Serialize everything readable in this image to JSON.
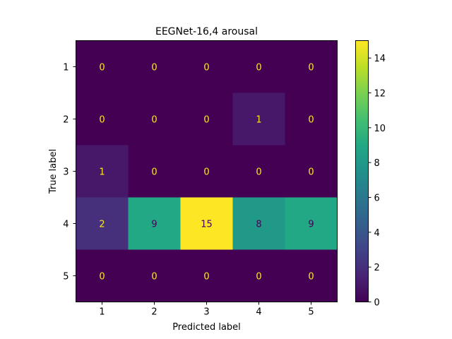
{
  "chart_data": {
    "type": "heatmap",
    "title": "EEGNet-16,4 arousal",
    "xlabel": "Predicted label",
    "ylabel": "True label",
    "x_categories": [
      "1",
      "2",
      "3",
      "4",
      "5"
    ],
    "y_categories": [
      "1",
      "2",
      "3",
      "4",
      "5"
    ],
    "matrix": [
      [
        0,
        0,
        0,
        0,
        0
      ],
      [
        0,
        0,
        0,
        1,
        0
      ],
      [
        1,
        0,
        0,
        0,
        0
      ],
      [
        2,
        9,
        15,
        8,
        9
      ],
      [
        0,
        0,
        0,
        0,
        0
      ]
    ],
    "colormap": "viridis",
    "value_range": [
      0,
      15
    ],
    "colorbar_ticks": [
      0,
      2,
      4,
      6,
      8,
      10,
      12,
      14
    ],
    "grid": false
  }
}
